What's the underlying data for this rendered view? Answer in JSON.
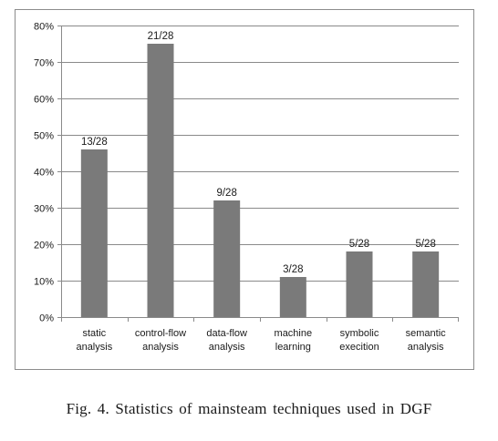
{
  "caption": "Fig. 4.  Statistics of mainsteam techniques used in DGF",
  "chart_data": {
    "type": "bar",
    "categories": [
      [
        "static",
        "analysis"
      ],
      [
        "control-flow",
        "analysis"
      ],
      [
        "data-flow",
        "analysis"
      ],
      [
        "machine",
        "learning"
      ],
      [
        "symbolic",
        "execition"
      ],
      [
        "semantic",
        "analysis"
      ]
    ],
    "values": [
      46,
      75,
      32,
      11,
      18,
      18
    ],
    "data_labels": [
      "13/28",
      "21/28",
      "9/28",
      "3/28",
      "5/28",
      "5/28"
    ],
    "ylim": [
      0,
      80
    ],
    "yticks": [
      0,
      10,
      20,
      30,
      40,
      50,
      60,
      70,
      80
    ],
    "ytick_labels": [
      "0%",
      "10%",
      "20%",
      "30%",
      "40%",
      "50%",
      "60%",
      "70%",
      "80%"
    ],
    "grid": true,
    "legend": "none",
    "bar_color": "#7a7a7a",
    "grid_color": "#8a8a8a",
    "axis_color": "#8a8a8a"
  }
}
